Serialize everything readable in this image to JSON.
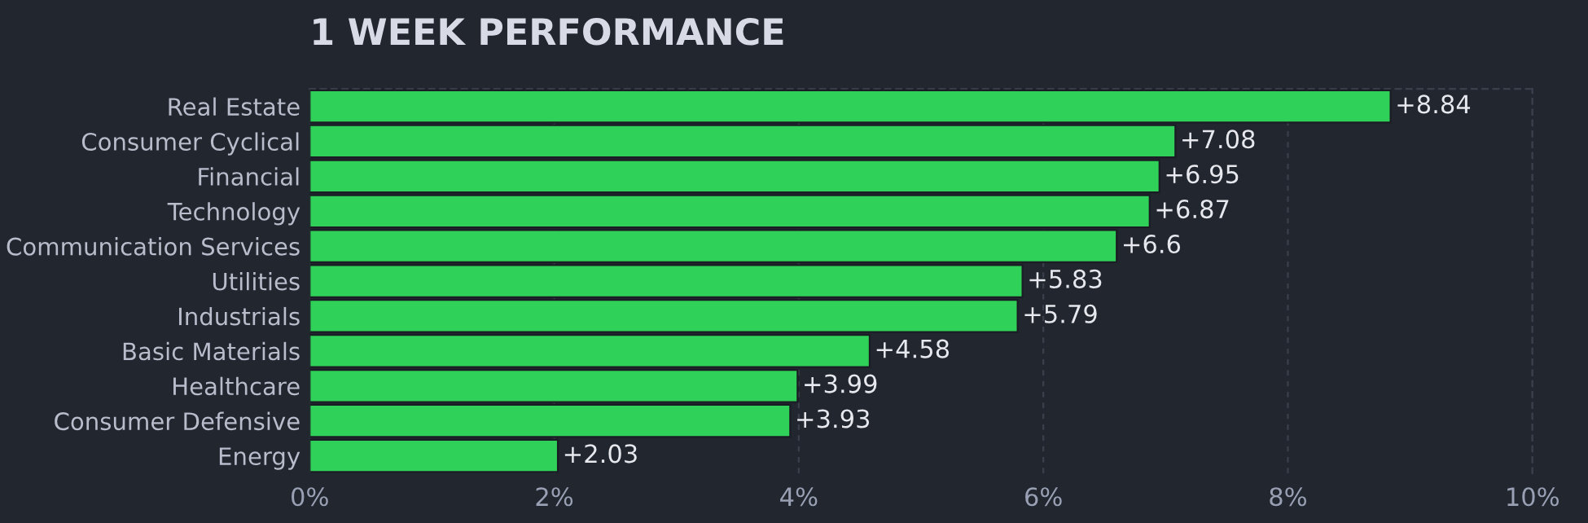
{
  "chart_data": {
    "type": "bar",
    "orientation": "horizontal",
    "title": "1 WEEK PERFORMANCE",
    "categories": [
      "Real Estate",
      "Consumer Cyclical",
      "Financial",
      "Technology",
      "Communication Services",
      "Utilities",
      "Industrials",
      "Basic Materials",
      "Healthcare",
      "Consumer Defensive",
      "Energy"
    ],
    "values": [
      8.84,
      7.08,
      6.95,
      6.87,
      6.6,
      5.83,
      5.79,
      4.58,
      3.99,
      3.93,
      2.03
    ],
    "value_labels": [
      "+8.84",
      "+7.08",
      "+6.95",
      "+6.87",
      "+6.6",
      "+5.83",
      "+5.79",
      "+4.58",
      "+3.99",
      "+3.93",
      "+2.03"
    ],
    "color": "#30d158",
    "xlim": [
      0,
      10
    ],
    "xticks": [
      {
        "value": 0,
        "label": "0%"
      },
      {
        "value": 2,
        "label": "2%"
      },
      {
        "value": 4,
        "label": "4%"
      },
      {
        "value": 6,
        "label": "6%"
      },
      {
        "value": 8,
        "label": "8%"
      },
      {
        "value": 10,
        "label": "10%"
      }
    ],
    "grid": "x"
  }
}
